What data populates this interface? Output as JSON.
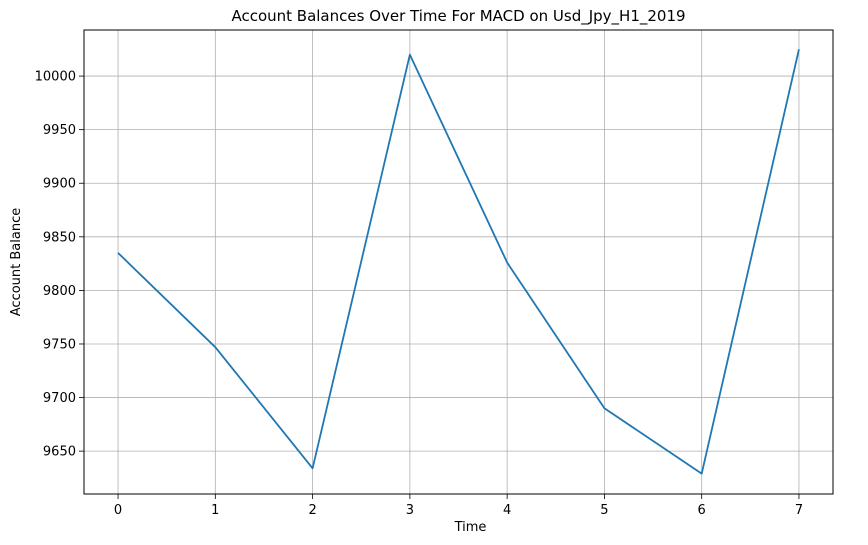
{
  "chart_data": {
    "type": "line",
    "title": "Account Balances Over Time For MACD on Usd_Jpy_H1_2019",
    "xlabel": "Time",
    "ylabel": "Account Balance",
    "x": [
      0,
      1,
      2,
      3,
      4,
      5,
      6,
      7
    ],
    "series": [
      {
        "values": [
          9835,
          9747,
          9634,
          10020,
          9826,
          9690,
          9629,
          10025
        ]
      }
    ],
    "xlim": [
      -0.35,
      7.35
    ],
    "ylim": [
      9610,
      10043
    ],
    "x_ticks": [
      0,
      1,
      2,
      3,
      4,
      5,
      6,
      7
    ],
    "y_ticks": [
      9650,
      9700,
      9750,
      9800,
      9850,
      9900,
      9950,
      10000
    ],
    "grid": true,
    "line_color": "#1f77b4"
  }
}
